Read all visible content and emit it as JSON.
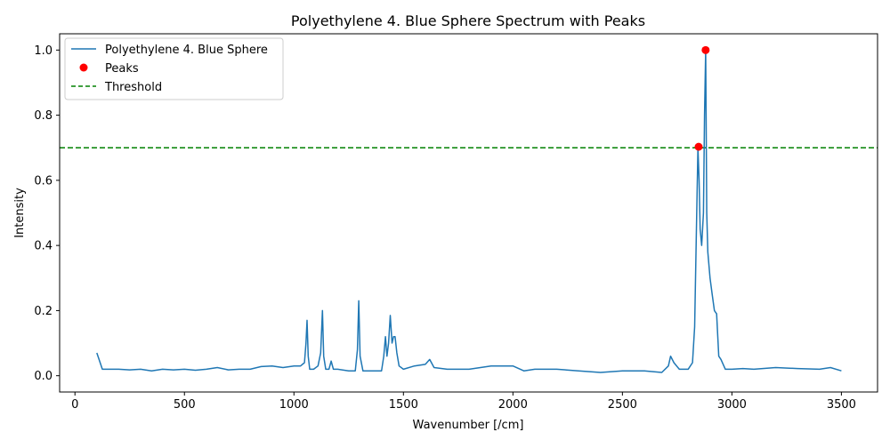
{
  "chart_data": {
    "type": "line",
    "title": "Polyethylene 4. Blue Sphere Spectrum with Peaks",
    "xlabel": "Wavenumber [/cm]",
    "ylabel": "Intensity",
    "xlim": [
      -70,
      3665
    ],
    "ylim": [
      -0.05,
      1.05
    ],
    "x_ticks": [
      0,
      500,
      1000,
      1500,
      2000,
      2500,
      3000,
      3500
    ],
    "x_tick_labels": [
      "0",
      "500",
      "1000",
      "1500",
      "2000",
      "2500",
      "3000",
      "3500"
    ],
    "y_ticks": [
      0.0,
      0.2,
      0.4,
      0.6,
      0.8,
      1.0
    ],
    "y_tick_labels": [
      "0.0",
      "0.2",
      "0.4",
      "0.6",
      "0.8",
      "1.0"
    ],
    "grid": false,
    "legend_position": "upper-left",
    "series": [
      {
        "name": "Polyethylene 4. Blue Sphere",
        "kind": "line",
        "color": "#1f77b4",
        "x": [
          100,
          110,
          125,
          150,
          200,
          250,
          300,
          350,
          400,
          450,
          500,
          550,
          600,
          650,
          700,
          750,
          800,
          850,
          900,
          950,
          1000,
          1030,
          1048,
          1055,
          1060,
          1065,
          1072,
          1090,
          1110,
          1122,
          1130,
          1136,
          1145,
          1160,
          1170,
          1180,
          1200,
          1250,
          1280,
          1290,
          1296,
          1302,
          1315,
          1350,
          1400,
          1410,
          1418,
          1425,
          1432,
          1440,
          1448,
          1455,
          1462,
          1470,
          1480,
          1500,
          1550,
          1600,
          1620,
          1640,
          1700,
          1800,
          1900,
          2000,
          2050,
          2100,
          2200,
          2300,
          2400,
          2500,
          2600,
          2680,
          2710,
          2720,
          2735,
          2760,
          2800,
          2820,
          2830,
          2838,
          2845,
          2850,
          2855,
          2862,
          2870,
          2875,
          2880,
          2885,
          2890,
          2900,
          2910,
          2920,
          2930,
          2940,
          2950,
          2970,
          3000,
          3050,
          3100,
          3200,
          3300,
          3400,
          3450,
          3500
        ],
        "y": [
          0.07,
          0.05,
          0.02,
          0.02,
          0.02,
          0.018,
          0.02,
          0.015,
          0.02,
          0.018,
          0.02,
          0.017,
          0.02,
          0.025,
          0.018,
          0.02,
          0.02,
          0.028,
          0.03,
          0.025,
          0.03,
          0.03,
          0.04,
          0.1,
          0.17,
          0.06,
          0.02,
          0.02,
          0.03,
          0.07,
          0.2,
          0.06,
          0.02,
          0.02,
          0.045,
          0.02,
          0.02,
          0.015,
          0.015,
          0.08,
          0.23,
          0.06,
          0.015,
          0.015,
          0.015,
          0.06,
          0.12,
          0.06,
          0.1,
          0.185,
          0.1,
          0.12,
          0.12,
          0.07,
          0.03,
          0.02,
          0.03,
          0.035,
          0.05,
          0.025,
          0.02,
          0.02,
          0.03,
          0.03,
          0.015,
          0.02,
          0.02,
          0.015,
          0.01,
          0.015,
          0.015,
          0.01,
          0.03,
          0.06,
          0.04,
          0.02,
          0.02,
          0.04,
          0.15,
          0.45,
          0.7,
          0.6,
          0.45,
          0.4,
          0.5,
          0.8,
          1.0,
          0.5,
          0.38,
          0.3,
          0.25,
          0.2,
          0.19,
          0.06,
          0.05,
          0.02,
          0.02,
          0.022,
          0.02,
          0.025,
          0.022,
          0.02,
          0.025,
          0.015
        ]
      },
      {
        "name": "Peaks",
        "kind": "scatter",
        "color": "#ff0000",
        "x": [
          2848,
          2880
        ],
        "y": [
          0.703,
          1.0
        ]
      },
      {
        "name": "Threshold",
        "kind": "hline",
        "color": "#008000",
        "y": 0.7
      }
    ]
  }
}
